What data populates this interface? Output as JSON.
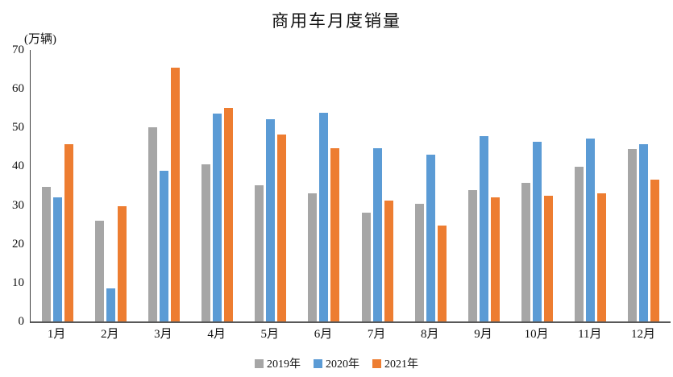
{
  "chart_data": {
    "type": "bar",
    "title": "商用车月度销量",
    "unit_label": "(万辆)",
    "xlabel": "",
    "ylabel": "万辆",
    "categories": [
      "1月",
      "2月",
      "3月",
      "4月",
      "5月",
      "6月",
      "7月",
      "8月",
      "9月",
      "10月",
      "11月",
      "12月"
    ],
    "series": [
      {
        "name": "2019年",
        "color": "#a6a6a6",
        "values": [
          34.6,
          26.0,
          50.1,
          40.6,
          35.1,
          33.0,
          28.1,
          30.4,
          33.8,
          35.7,
          39.9,
          44.5
        ]
      },
      {
        "name": "2020年",
        "color": "#5b9bd5",
        "values": [
          31.9,
          8.6,
          38.9,
          53.6,
          52.1,
          53.7,
          44.7,
          43.1,
          47.7,
          46.4,
          47.2,
          45.6
        ]
      },
      {
        "name": "2021年",
        "color": "#ed7d31",
        "values": [
          45.8,
          29.8,
          65.4,
          55.0,
          48.2,
          44.6,
          31.2,
          24.8,
          31.9,
          32.5,
          33.1,
          36.5
        ]
      }
    ],
    "ylim": [
      0,
      70
    ],
    "yticks": [
      0,
      10,
      20,
      30,
      40,
      50,
      60,
      70
    ],
    "grid": "off",
    "legend_position": "bottom"
  },
  "colors": {
    "background": "#ffffff",
    "axis_line": "#404040",
    "text": "#111111"
  }
}
